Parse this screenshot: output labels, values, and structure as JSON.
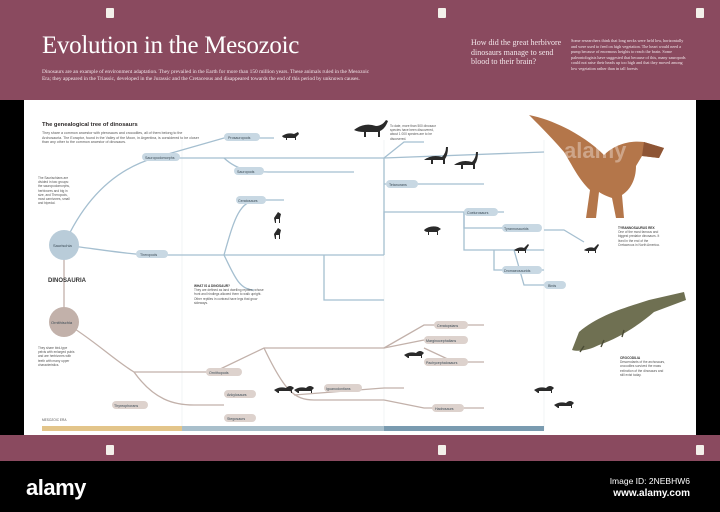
{
  "header": {
    "title": "Evolution in the Mesozoic",
    "intro": "Dinosaurs are an example of environment adaptation. They prevailed in the Earth for more than 150 million years. These animals ruled in the Mesozoic Era; they appeared in the Triassic, developed in the Jurassic and the Cretaceous and disappeared towards the end of this period by unknown causes.",
    "question": "How did the great herbivore dinosaurs manage to send blood to their brain?",
    "answer": "Some researchers think that long necks were held low, horizontally and were used to feed on high vegetation. The heart would need a pump because of enormous heights to reach the brain. Some paleontologists have suggested that because of this, many sauropods could not raise their heads up too high and that they moved among low vegetation rather than in tall forests"
  },
  "tree": {
    "title": "The genealogical tree of dinosaurs",
    "description": "They share a common ancestor with pterosaurs and crocodiles, all of them belong to the Archosauria. The Eoraptor, found in the Valley of the Moon, in Argentina, is considered to be closer than any other to the common ancestor of dinosaurs.",
    "dinosauria_label": "DINOSAURIA",
    "saurischia": "Saurischia",
    "ornithischia": "Ornithischia",
    "saurischia_note": "The Saurischians are divided in two groups: the sauropodomorphs, herbivores and big in size, and Theropods, most carnivores, small and bipedal.",
    "ornithischia_note": "They share bird-type pelvis with enlarged pubis and are herbivores with teeth with many upper characteristics.",
    "bird_note_head": "WHAT IS A DINOSAUR?",
    "bird_note": "They are defined as land dwelling reptiles, whose front and hindlegs allowed them to walk upright. Other reptiles in contrast have legs that grow sideways.",
    "trex_note_head": "TYRANNOSAURUS REX",
    "trex_note": "One of the most famous and biggest predator dinosaurs. It lived in the end of the Cretaceous in North America.",
    "croc_note_head": "CROCODILIA",
    "croc_note": "Descendants of the archosaurs, crocodiles survived the mass extinction of the dinosaurs and still exist today.",
    "sauropod_note": "To date, more than 500 dinosaur species have been discovered, about 1 000 species are to be discovered.",
    "era_label": "MESOZOIC ERA",
    "nodes": [
      "Sauropodomorphs",
      "Prosauropods",
      "Sauropods",
      "Theropods",
      "Ceratosaurs",
      "Tetanurans",
      "Coelurosaurs",
      "Ornithopods",
      "Thyreophorans",
      "Marginocephalians",
      "Ceratopsians",
      "Pachycephalosaurs",
      "Iguanodontians",
      "Hadrosaurs",
      "Ankylosaurs",
      "Stegosaurs",
      "Tyrannosaurids",
      "Dromaeosaurids",
      "Birds"
    ]
  },
  "footer": {
    "logo": "alamy",
    "image_id": "Image ID: 2NEBHW6",
    "site": "www.alamy.com"
  },
  "colors": {
    "header_bg": "#8a4a5f",
    "saurischia_blue": "#b9ccd9",
    "ornithischia_brown": "#c2b1aa",
    "line_blue": "#a5bfd0"
  }
}
